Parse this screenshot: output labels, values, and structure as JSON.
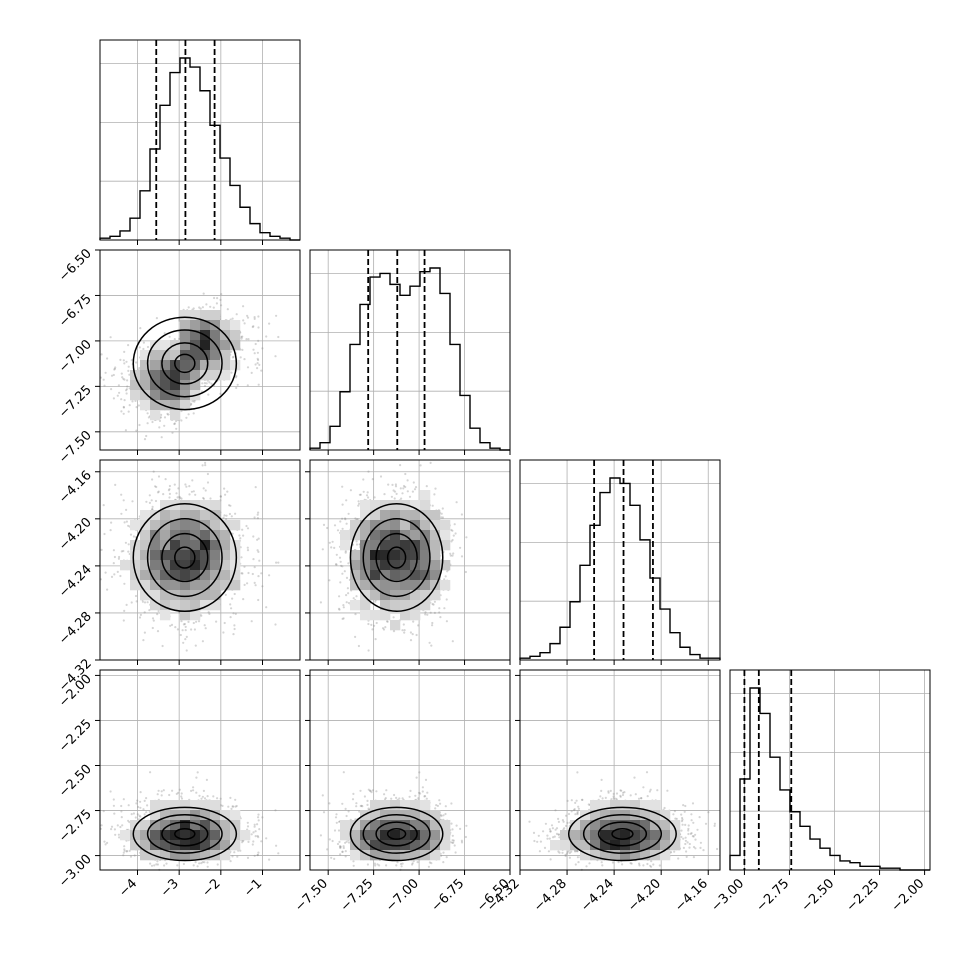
{
  "chart_data": {
    "type": "corner",
    "parameters": [
      {
        "index": 0,
        "range": [
          -4.9,
          -0.1
        ],
        "ticks": [
          -4,
          -3,
          -2,
          -1
        ],
        "tick_labels": [
          "−4",
          "−3",
          "−2",
          "−1"
        ],
        "mean": -2.85,
        "sd": 0.7,
        "quantiles": [
          -3.55,
          -2.85,
          -2.15
        ]
      },
      {
        "index": 1,
        "range": [
          -7.6,
          -6.5
        ],
        "ticks": [
          -7.5,
          -7.25,
          -7.0,
          -6.75,
          -6.5
        ],
        "tick_labels": [
          "−7.50",
          "−7.25",
          "−7.00",
          "−6.75",
          "−6.50"
        ],
        "mixture": [
          {
            "mean": -7.22,
            "sd": 0.11
          },
          {
            "mean": -7.02,
            "sd": 0.11
          }
        ],
        "quantiles": [
          -7.28,
          -7.12,
          -6.97
        ]
      },
      {
        "index": 2,
        "range": [
          -4.32,
          -4.15
        ],
        "ticks": [
          -4.32,
          -4.28,
          -4.24,
          -4.2,
          -4.16
        ],
        "tick_labels": [
          "−4.32",
          "−4.28",
          "−4.24",
          "−4.20",
          "−4.16"
        ],
        "mean": -4.232,
        "sd": 0.025,
        "quantiles": [
          -4.257,
          -4.232,
          -4.207
        ]
      },
      {
        "index": 3,
        "range": [
          -3.08,
          -1.97
        ],
        "ticks": [
          -3.0,
          -2.75,
          -2.5,
          -2.25,
          -2.0
        ],
        "tick_labels": [
          "−3.00",
          "−2.75",
          "−2.50",
          "−2.25",
          "−2.00"
        ],
        "quantiles": [
          -3.0,
          -2.92,
          -2.74
        ]
      }
    ],
    "histograms": [
      {
        "param": 0,
        "bins": 20,
        "counts": [
          0.01,
          0.02,
          0.05,
          0.12,
          0.27,
          0.5,
          0.74,
          0.92,
          1.0,
          0.95,
          0.82,
          0.63,
          0.45,
          0.3,
          0.18,
          0.09,
          0.04,
          0.02,
          0.01,
          0.0
        ]
      },
      {
        "param": 1,
        "bins": 20,
        "counts": [
          0.01,
          0.04,
          0.13,
          0.32,
          0.58,
          0.8,
          0.95,
          0.97,
          0.91,
          0.85,
          0.9,
          0.98,
          1.0,
          0.86,
          0.58,
          0.3,
          0.12,
          0.04,
          0.01,
          0.0
        ]
      },
      {
        "param": 2,
        "bins": 20,
        "counts": [
          0.01,
          0.02,
          0.04,
          0.09,
          0.18,
          0.32,
          0.52,
          0.74,
          0.92,
          1.0,
          0.97,
          0.85,
          0.66,
          0.45,
          0.28,
          0.15,
          0.07,
          0.03,
          0.01,
          0.01
        ]
      },
      {
        "param": 3,
        "bins": 20,
        "counts": [
          0.08,
          0.5,
          1.0,
          0.86,
          0.62,
          0.44,
          0.32,
          0.24,
          0.17,
          0.12,
          0.08,
          0.05,
          0.04,
          0.02,
          0.02,
          0.01,
          0.01,
          0.0,
          0.0,
          0.0
        ]
      }
    ],
    "grid": true,
    "quantile_style": "dashed",
    "contour_levels": [
      0.12,
      0.3,
      0.55,
      0.82
    ]
  }
}
